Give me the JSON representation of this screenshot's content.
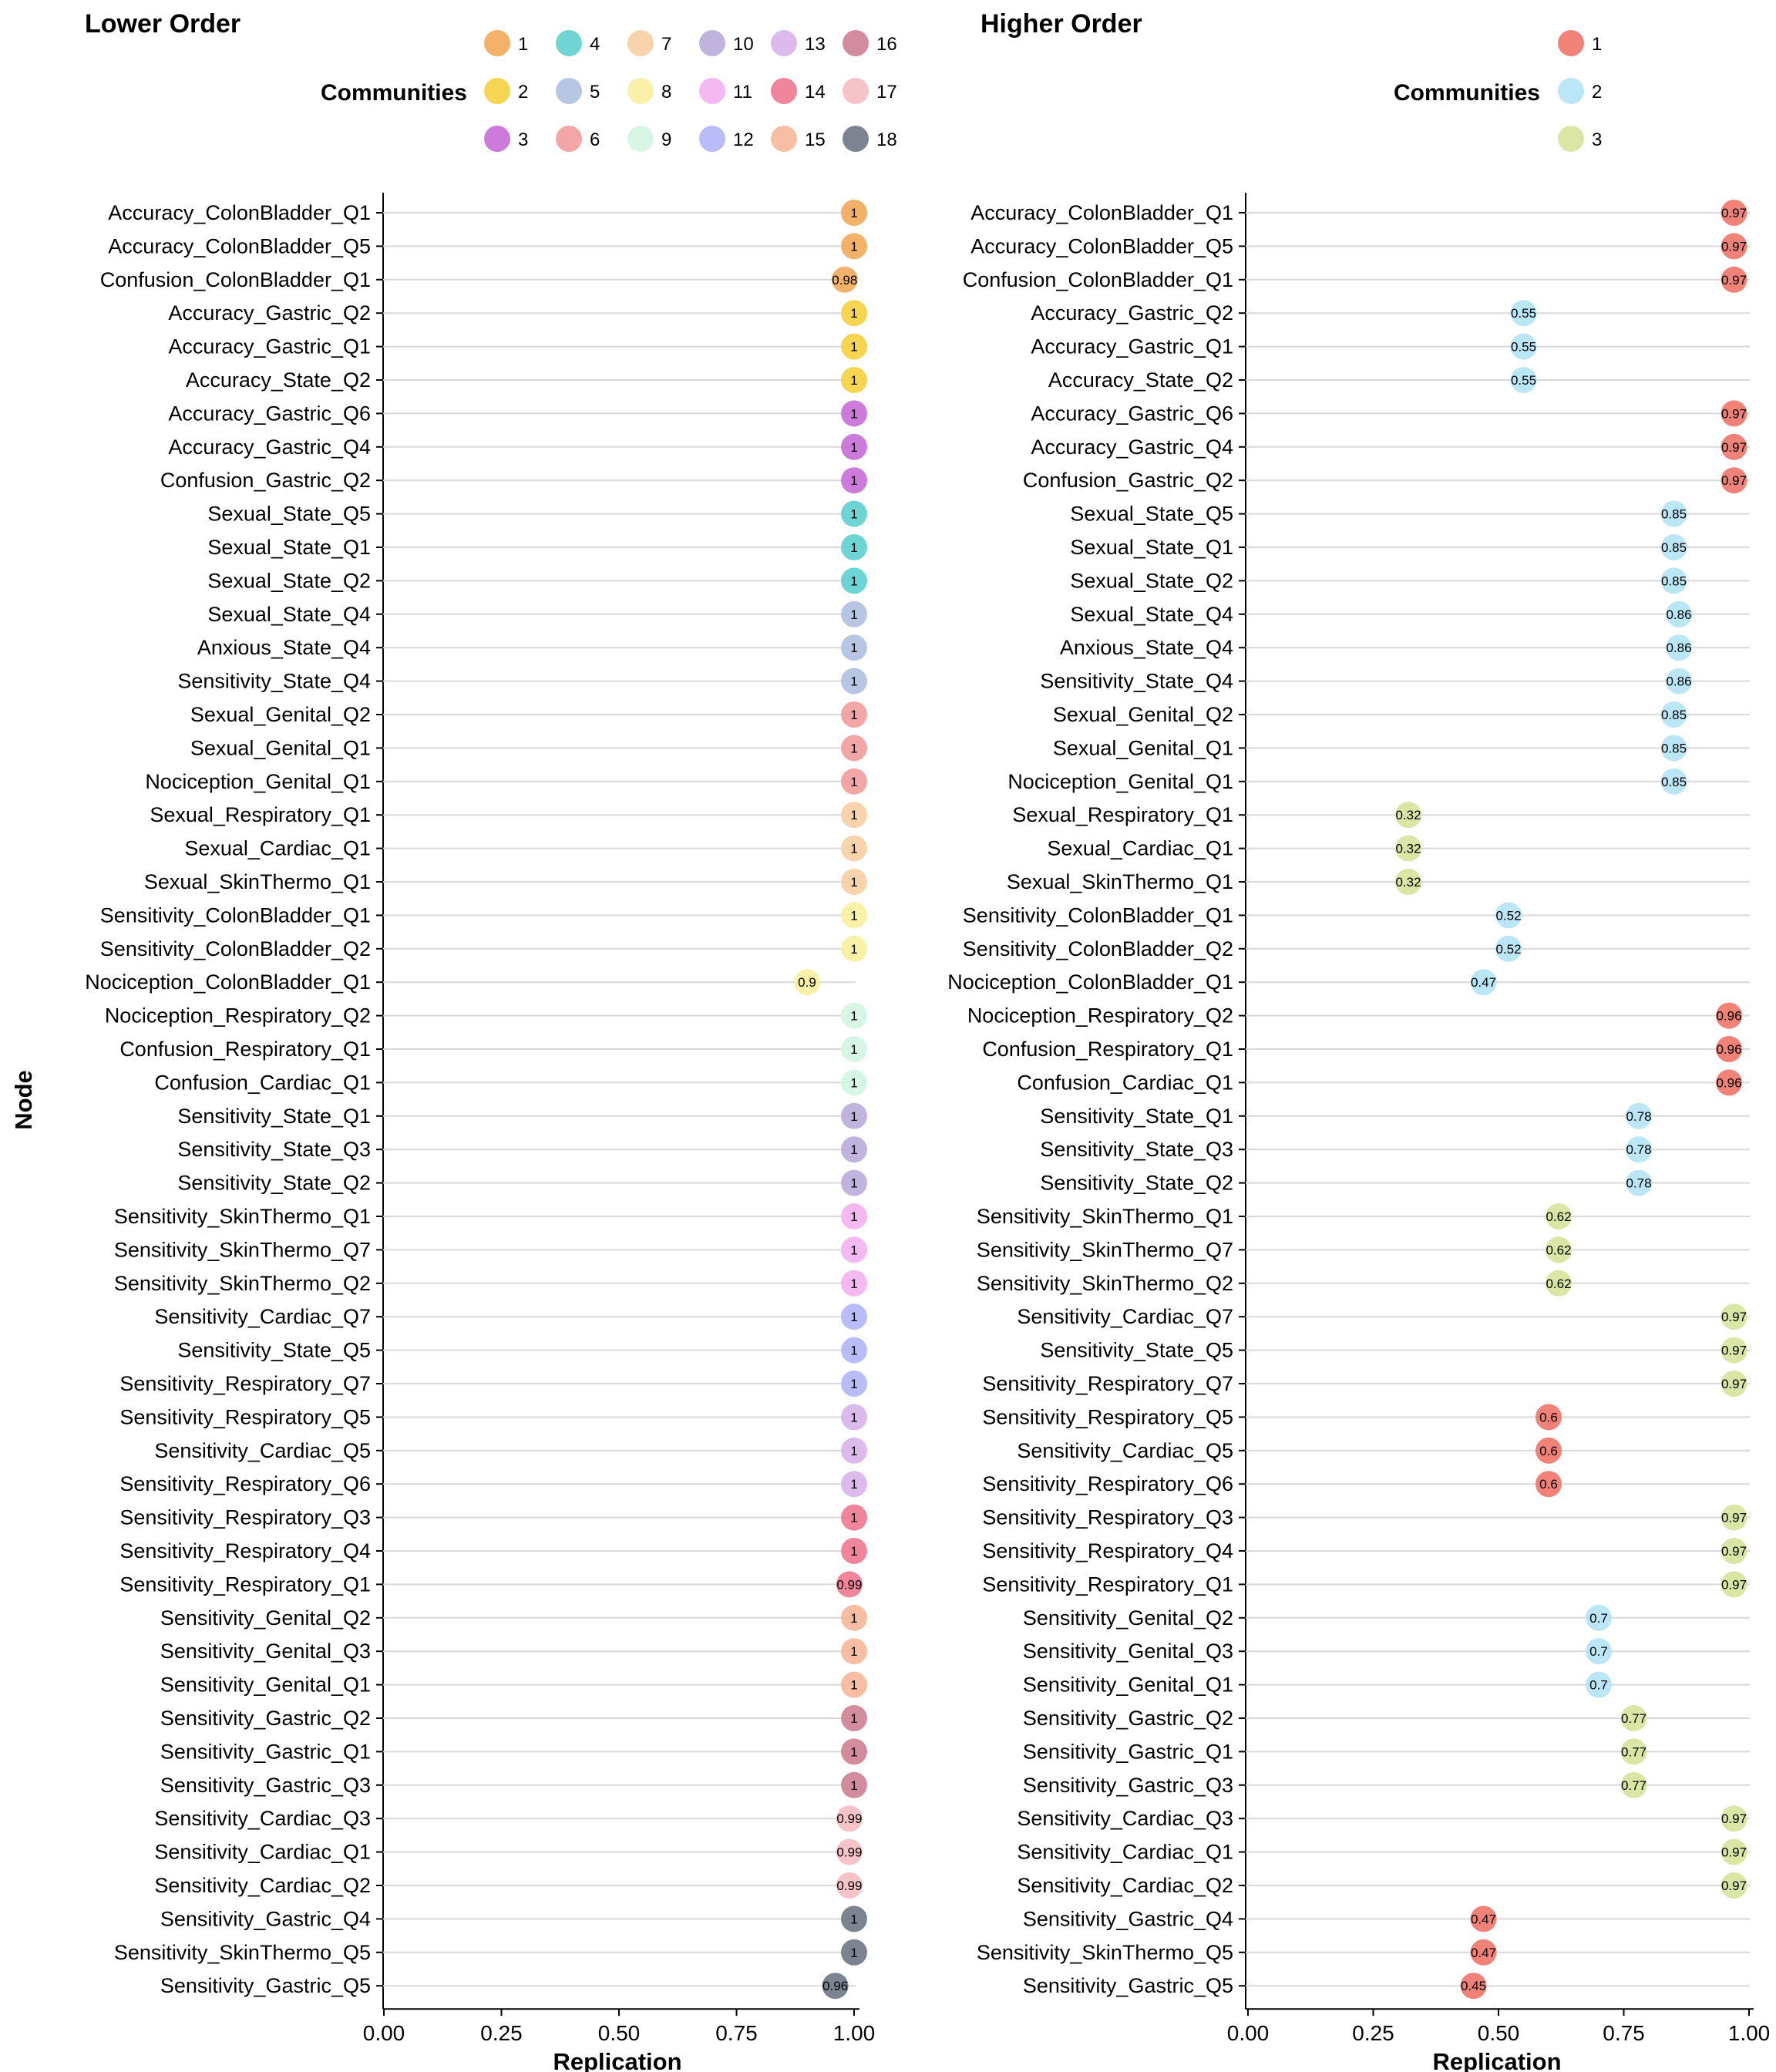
{
  "chart_data": {
    "type": "scatter",
    "ylabel": "Node",
    "nodes": [
      "Accuracy_ColonBladder_Q1",
      "Accuracy_ColonBladder_Q5",
      "Confusion_ColonBladder_Q1",
      "Accuracy_Gastric_Q2",
      "Accuracy_Gastric_Q1",
      "Accuracy_State_Q2",
      "Accuracy_Gastric_Q6",
      "Accuracy_Gastric_Q4",
      "Confusion_Gastric_Q2",
      "Sexual_State_Q5",
      "Sexual_State_Q1",
      "Sexual_State_Q2",
      "Sexual_State_Q4",
      "Anxious_State_Q4",
      "Sensitivity_State_Q4",
      "Sexual_Genital_Q2",
      "Sexual_Genital_Q1",
      "Nociception_Genital_Q1",
      "Sexual_Respiratory_Q1",
      "Sexual_Cardiac_Q1",
      "Sexual_SkinThermo_Q1",
      "Sensitivity_ColonBladder_Q1",
      "Sensitivity_ColonBladder_Q2",
      "Nociception_ColonBladder_Q1",
      "Nociception_Respiratory_Q2",
      "Confusion_Respiratory_Q1",
      "Confusion_Cardiac_Q1",
      "Sensitivity_State_Q1",
      "Sensitivity_State_Q3",
      "Sensitivity_State_Q2",
      "Sensitivity_SkinThermo_Q1",
      "Sensitivity_SkinThermo_Q7",
      "Sensitivity_SkinThermo_Q2",
      "Sensitivity_Cardiac_Q7",
      "Sensitivity_State_Q5",
      "Sensitivity_Respiratory_Q7",
      "Sensitivity_Respiratory_Q5",
      "Sensitivity_Cardiac_Q5",
      "Sensitivity_Respiratory_Q6",
      "Sensitivity_Respiratory_Q3",
      "Sensitivity_Respiratory_Q4",
      "Sensitivity_Respiratory_Q1",
      "Sensitivity_Genital_Q2",
      "Sensitivity_Genital_Q3",
      "Sensitivity_Genital_Q1",
      "Sensitivity_Gastric_Q2",
      "Sensitivity_Gastric_Q1",
      "Sensitivity_Gastric_Q3",
      "Sensitivity_Cardiac_Q3",
      "Sensitivity_Cardiac_Q1",
      "Sensitivity_Cardiac_Q2",
      "Sensitivity_Gastric_Q4",
      "Sensitivity_SkinThermo_Q5",
      "Sensitivity_Gastric_Q5"
    ],
    "panels": [
      {
        "title": "Lower Order",
        "xlabel": "Replication",
        "xlim": [
          0,
          1
        ],
        "xticks": [
          "0.00",
          "0.25",
          "0.50",
          "0.75",
          "1.00"
        ],
        "legend_title": "Communities",
        "legend_placement": "top",
        "communities": [
          {
            "label": "1",
            "color": "#F2A85A"
          },
          {
            "label": "2",
            "color": "#F4D03F"
          },
          {
            "label": "3",
            "color": "#C86DD7"
          },
          {
            "label": "4",
            "color": "#5ED0CF"
          },
          {
            "label": "5",
            "color": "#AFC0E0"
          },
          {
            "label": "6",
            "color": "#F19C9C"
          },
          {
            "label": "7",
            "color": "#F7CFA3"
          },
          {
            "label": "8",
            "color": "#F8F09E"
          },
          {
            "label": "9",
            "color": "#D3F5E2"
          },
          {
            "label": "10",
            "color": "#B9ACDB"
          },
          {
            "label": "11",
            "color": "#F4B1F0"
          },
          {
            "label": "12",
            "color": "#B0B5F8"
          },
          {
            "label": "13",
            "color": "#D8B3EA"
          },
          {
            "label": "14",
            "color": "#F07890"
          },
          {
            "label": "15",
            "color": "#F7B79A"
          },
          {
            "label": "16",
            "color": "#CE7F92"
          },
          {
            "label": "17",
            "color": "#F5BCC2"
          },
          {
            "label": "18",
            "color": "#6E7585"
          }
        ],
        "values": [
          1,
          1,
          0.98,
          1,
          1,
          1,
          1,
          1,
          1,
          1,
          1,
          1,
          1,
          1,
          1,
          1,
          1,
          1,
          1,
          1,
          1,
          1,
          1,
          0.9,
          1,
          1,
          1,
          1,
          1,
          1,
          1,
          1,
          1,
          1,
          1,
          1,
          1,
          1,
          1,
          1,
          1,
          0.99,
          1,
          1,
          1,
          1,
          1,
          1,
          0.99,
          0.99,
          0.99,
          1,
          1,
          0.96
        ],
        "value_labels": [
          "1",
          "1",
          "0.98",
          "1",
          "1",
          "1",
          "1",
          "1",
          "1",
          "1",
          "1",
          "1",
          "1",
          "1",
          "1",
          "1",
          "1",
          "1",
          "1",
          "1",
          "1",
          "1",
          "1",
          "0.9",
          "1",
          "1",
          "1",
          "1",
          "1",
          "1",
          "1",
          "1",
          "1",
          "1",
          "1",
          "1",
          "1",
          "1",
          "1",
          "1",
          "1",
          "0.99",
          "1",
          "1",
          "1",
          "1",
          "1",
          "1",
          "0.99",
          "0.99",
          "0.99",
          "1",
          "1",
          "0.96"
        ],
        "community": [
          1,
          1,
          1,
          2,
          2,
          2,
          3,
          3,
          3,
          4,
          4,
          4,
          5,
          5,
          5,
          6,
          6,
          6,
          7,
          7,
          7,
          8,
          8,
          8,
          9,
          9,
          9,
          10,
          10,
          10,
          11,
          11,
          11,
          12,
          12,
          12,
          13,
          13,
          13,
          14,
          14,
          14,
          15,
          15,
          15,
          16,
          16,
          16,
          17,
          17,
          17,
          18,
          18,
          18
        ]
      },
      {
        "title": "Higher Order",
        "xlabel": "Replication",
        "xlim": [
          0,
          1
        ],
        "xticks": [
          "0.00",
          "0.25",
          "0.50",
          "0.75",
          "1.00"
        ],
        "legend_title": "Communities",
        "legend_placement": "top",
        "communities": [
          {
            "label": "1",
            "color": "#F07468"
          },
          {
            "label": "2",
            "color": "#B4E3F5"
          },
          {
            "label": "3",
            "color": "#D6E39A"
          }
        ],
        "values": [
          0.97,
          0.97,
          0.97,
          0.55,
          0.55,
          0.55,
          0.97,
          0.97,
          0.97,
          0.85,
          0.85,
          0.85,
          0.86,
          0.86,
          0.86,
          0.85,
          0.85,
          0.85,
          0.32,
          0.32,
          0.32,
          0.52,
          0.52,
          0.47,
          0.96,
          0.96,
          0.96,
          0.78,
          0.78,
          0.78,
          0.62,
          0.62,
          0.62,
          0.97,
          0.97,
          0.97,
          0.6,
          0.6,
          0.6,
          0.97,
          0.97,
          0.97,
          0.7,
          0.7,
          0.7,
          0.77,
          0.77,
          0.77,
          0.97,
          0.97,
          0.97,
          0.47,
          0.47,
          0.45
        ],
        "value_labels": [
          "0.97",
          "0.97",
          "0.97",
          "0.55",
          "0.55",
          "0.55",
          "0.97",
          "0.97",
          "0.97",
          "0.85",
          "0.85",
          "0.85",
          "0.86",
          "0.86",
          "0.86",
          "0.85",
          "0.85",
          "0.85",
          "0.32",
          "0.32",
          "0.32",
          "0.52",
          "0.52",
          "0.47",
          "0.96",
          "0.96",
          "0.96",
          "0.78",
          "0.78",
          "0.78",
          "0.62",
          "0.62",
          "0.62",
          "0.97",
          "0.97",
          "0.97",
          "0.6",
          "0.6",
          "0.6",
          "0.97",
          "0.97",
          "0.97",
          "0.7",
          "0.7",
          "0.7",
          "0.77",
          "0.77",
          "0.77",
          "0.97",
          "0.97",
          "0.97",
          "0.47",
          "0.47",
          "0.45"
        ],
        "community": [
          1,
          1,
          1,
          2,
          2,
          2,
          1,
          1,
          1,
          2,
          2,
          2,
          2,
          2,
          2,
          2,
          2,
          2,
          3,
          3,
          3,
          2,
          2,
          2,
          1,
          1,
          1,
          2,
          2,
          2,
          3,
          3,
          3,
          3,
          3,
          3,
          1,
          1,
          1,
          3,
          3,
          3,
          2,
          2,
          2,
          3,
          3,
          3,
          3,
          3,
          3,
          1,
          1,
          1
        ]
      }
    ]
  }
}
